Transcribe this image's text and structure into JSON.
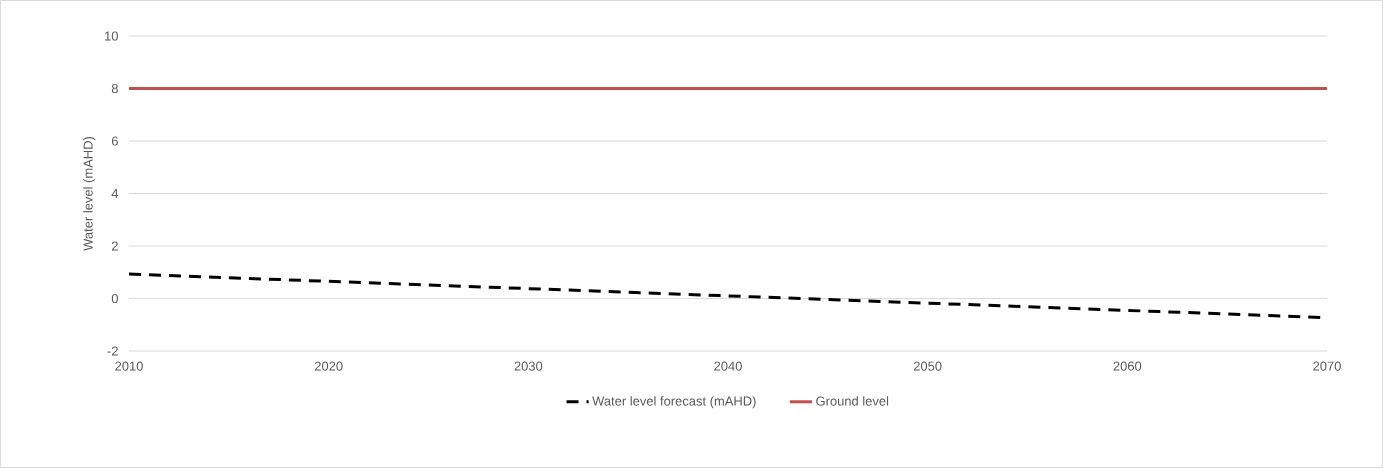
{
  "chart_data": {
    "type": "line",
    "ylabel": "Water level (mAHD)",
    "xlim": [
      2010,
      2070
    ],
    "xticks": [
      2010,
      2020,
      2030,
      2040,
      2050,
      2060,
      2070
    ],
    "ylim": [
      -2,
      10
    ],
    "yticks": [
      -2,
      0,
      2,
      4,
      6,
      8,
      10
    ],
    "grid": "y",
    "legend": "bottom",
    "marker": "none",
    "series": [
      {
        "name": "Water level forecast (mAHD)",
        "color": "#000000",
        "line_style": "dashed",
        "x": [
          2010,
          2040,
          2070
        ],
        "values": [
          0.93,
          0.1,
          -0.73
        ]
      },
      {
        "name": "Ground level",
        "color": "#c0504d",
        "line_style": "solid",
        "x": [
          2010,
          2070
        ],
        "values": [
          8,
          8
        ]
      }
    ]
  }
}
